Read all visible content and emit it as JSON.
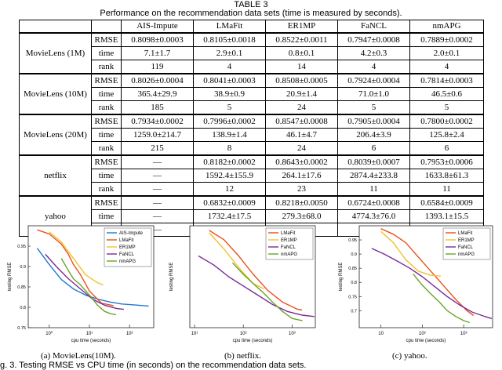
{
  "caption": {
    "label": "TABLE 3",
    "text": "Performance on the recommendation data sets (time is measured by seconds)."
  },
  "table": {
    "columns": [
      "AIS-Impute",
      "LMaFit",
      "ER1MP",
      "FaNCL",
      "nmAPG"
    ],
    "groups": [
      {
        "dataset": "MovieLens (1M)",
        "rows": [
          {
            "metric": "RMSE",
            "cells": [
              "0.8098±0.0003",
              "0.8105±0.0018",
              "0.8522±0.0011",
              "0.7947±0.0008",
              "0.7889±0.0002"
            ],
            "best": 4
          },
          {
            "metric": "time",
            "cells": [
              "7.1±1.7",
              "2.9±0.1",
              "0.8±0.1",
              "4.2±0.3",
              "2.0±0.1"
            ],
            "best": -1
          },
          {
            "metric": "rank",
            "cells": [
              "119",
              "4",
              "14",
              "4",
              "4"
            ],
            "best": -1
          }
        ]
      },
      {
        "dataset": "MovieLens (10M)",
        "rows": [
          {
            "metric": "RMSE",
            "cells": [
              "0.8026±0.0004",
              "0.8041±0.0003",
              "0.8508±0.0005",
              "0.7924±0.0004",
              "0.7814±0.0003"
            ],
            "best": 4
          },
          {
            "metric": "time",
            "cells": [
              "365.4±29.9",
              "38.9±0.9",
              "20.9±1.4",
              "71.0±1.0",
              "46.5±0.6"
            ],
            "best": -1
          },
          {
            "metric": "rank",
            "cells": [
              "185",
              "5",
              "24",
              "5",
              "5"
            ],
            "best": -1
          }
        ]
      },
      {
        "dataset": "MovieLens (20M)",
        "rows": [
          {
            "metric": "RMSE",
            "cells": [
              "0.7934±0.0002",
              "0.7996±0.0002",
              "0.8547±0.0008",
              "0.7905±0.0004",
              "0.7800±0.0002"
            ],
            "best": 4
          },
          {
            "metric": "time",
            "cells": [
              "1259.0±214.7",
              "138.9±1.4",
              "46.1±4.7",
              "206.4±3.9",
              "125.8±2.4"
            ],
            "best": -1
          },
          {
            "metric": "rank",
            "cells": [
              "215",
              "8",
              "24",
              "6",
              "6"
            ],
            "best": -1
          }
        ]
      },
      {
        "dataset": "netflix",
        "rows": [
          {
            "metric": "RMSE",
            "cells": [
              "—",
              "0.8182±0.0002",
              "0.8643±0.0002",
              "0.8039±0.0007",
              "0.7953±0.0006"
            ],
            "best": 4
          },
          {
            "metric": "time",
            "cells": [
              "—",
              "1592.4±155.9",
              "264.1±17.6",
              "2874.4±233.8",
              "1633.8±61.3"
            ],
            "best": -1
          },
          {
            "metric": "rank",
            "cells": [
              "—",
              "12",
              "23",
              "11",
              "11"
            ],
            "best": -1
          }
        ]
      },
      {
        "dataset": "yahoo",
        "rows": [
          {
            "metric": "RMSE",
            "cells": [
              "—",
              "0.6832±0.0009",
              "0.8218±0.0050",
              "0.6724±0.0008",
              "0.6584±0.0009"
            ],
            "best": 4
          },
          {
            "metric": "time",
            "cells": [
              "—",
              "1732.4±17.5",
              "279.3±68.0",
              "4774.3±76.0",
              "1393.1±15.5"
            ],
            "best": -1
          },
          {
            "metric": "rank",
            "cells": [
              "—",
              "10",
              "38",
              "12",
              "9"
            ],
            "best": -1
          }
        ]
      }
    ]
  },
  "colors": {
    "AIS-Impute": "#1f78d1",
    "LMaFit": "#e8501a",
    "ER1MP": "#f2c12e",
    "FaNCL": "#7a2a9a",
    "nmAPG": "#6aa428"
  },
  "chart_data": [
    {
      "type": "line",
      "caption": "(a) MovieLens(10M).",
      "xlabel": "cpu time (seconds)",
      "ylabel": "testing RMSE",
      "xscale": "log",
      "xlim": [
        0.3,
        400
      ],
      "ylim": [
        0.75,
        1.0
      ],
      "xticks": [
        "10⁰",
        "10¹",
        "10²"
      ],
      "yticks": [
        "0.95",
        "0.9",
        "0.85",
        "0.8",
        "0.75"
      ],
      "legend": "top-right",
      "series": [
        {
          "name": "AIS-Impute",
          "x": [
            0.5,
            1,
            2,
            4,
            8,
            16,
            32,
            64,
            128,
            300
          ],
          "y": [
            0.945,
            0.905,
            0.868,
            0.845,
            0.83,
            0.82,
            0.813,
            0.808,
            0.806,
            0.803
          ]
        },
        {
          "name": "LMaFit",
          "x": [
            0.5,
            1,
            2,
            3,
            4,
            6,
            10,
            20,
            40
          ],
          "y": [
            0.99,
            0.98,
            0.955,
            0.93,
            0.905,
            0.88,
            0.84,
            0.81,
            0.804
          ]
        },
        {
          "name": "ER1MP",
          "x": [
            1,
            2,
            4,
            8,
            16,
            22
          ],
          "y": [
            0.985,
            0.96,
            0.92,
            0.88,
            0.86,
            0.855
          ]
        },
        {
          "name": "FaNCL",
          "x": [
            0.8,
            1.5,
            3,
            6,
            12,
            24,
            48,
            72
          ],
          "y": [
            0.93,
            0.9,
            0.87,
            0.845,
            0.82,
            0.805,
            0.797,
            0.795
          ]
        },
        {
          "name": "nmAPG",
          "x": [
            2,
            3,
            4,
            6,
            10,
            16,
            24,
            32,
            46
          ],
          "y": [
            0.92,
            0.89,
            0.87,
            0.855,
            0.83,
            0.805,
            0.79,
            0.785,
            0.782
          ]
        }
      ]
    },
    {
      "type": "line",
      "caption": "(b) netflix.",
      "xlabel": "cpu time (seconds)",
      "ylabel": "testing RMSE",
      "xscale": "log",
      "xlim": [
        8,
        3000
      ],
      "ylim": [
        0.78,
        1.0
      ],
      "xticks": [
        "10¹",
        "10²",
        "10³"
      ],
      "yticks": [],
      "legend": "top-right",
      "series": [
        {
          "name": "LMaFit",
          "x": [
            20,
            40,
            80,
            160,
            320,
            640,
            1280,
            1600
          ],
          "y": [
            0.99,
            0.97,
            0.935,
            0.895,
            0.86,
            0.835,
            0.82,
            0.818
          ]
        },
        {
          "name": "ER1MP",
          "x": [
            20,
            40,
            80,
            160,
            264
          ],
          "y": [
            0.985,
            0.95,
            0.91,
            0.875,
            0.864
          ]
        },
        {
          "name": "FaNCL",
          "x": [
            12,
            25,
            50,
            100,
            200,
            400,
            800,
            1600,
            2874
          ],
          "y": [
            0.935,
            0.915,
            0.89,
            0.87,
            0.85,
            0.83,
            0.815,
            0.807,
            0.804
          ]
        },
        {
          "name": "nmAPG",
          "x": [
            60,
            100,
            160,
            260,
            400,
            640,
            1000,
            1634
          ],
          "y": [
            0.92,
            0.895,
            0.875,
            0.855,
            0.835,
            0.815,
            0.8,
            0.795
          ]
        }
      ]
    },
    {
      "type": "line",
      "caption": "(c) yahoo.",
      "xlabel": "cpu time (seconds)",
      "ylabel": "testing RMSE",
      "xscale": "log",
      "xlim": [
        3,
        5000
      ],
      "ylim": [
        0.64,
        1.0
      ],
      "xticks": [
        "10",
        "10²",
        "10³"
      ],
      "yticks": [
        "0.95",
        "0.9",
        "0.85",
        "0.8",
        "0.75",
        "0.7"
      ],
      "legend": "top-right",
      "series": [
        {
          "name": "LMaFit",
          "x": [
            10,
            20,
            40,
            80,
            160,
            320,
            640,
            1200,
            1732
          ],
          "y": [
            0.99,
            0.97,
            0.94,
            0.89,
            0.84,
            0.79,
            0.74,
            0.7,
            0.683
          ]
        },
        {
          "name": "ER1MP",
          "x": [
            10,
            20,
            40,
            80,
            160,
            279
          ],
          "y": [
            0.98,
            0.94,
            0.88,
            0.84,
            0.825,
            0.822
          ]
        },
        {
          "name": "FaNCL",
          "x": [
            6,
            12,
            25,
            50,
            100,
            200,
            400,
            800,
            1600,
            3200,
            4774
          ],
          "y": [
            0.92,
            0.9,
            0.875,
            0.85,
            0.82,
            0.785,
            0.75,
            0.72,
            0.695,
            0.68,
            0.672
          ]
        },
        {
          "name": "nmAPG",
          "x": [
            60,
            100,
            160,
            260,
            400,
            640,
            1000,
            1393
          ],
          "y": [
            0.83,
            0.79,
            0.76,
            0.73,
            0.7,
            0.68,
            0.665,
            0.658
          ]
        }
      ]
    }
  ],
  "bottom_caption": "g. 3. Testing RMSE vs CPU time (in seconds) on the recommendation data sets."
}
